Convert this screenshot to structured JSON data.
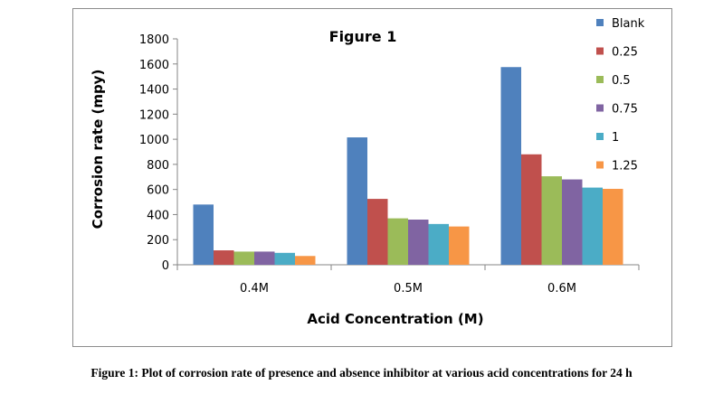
{
  "caption": "Figure 1: Plot of corrosion rate of presence and absence inhibitor at various acid concentrations for 24 h",
  "chart_data": {
    "type": "bar",
    "title": "Figure 1",
    "xlabel": "Acid Concentration (M)",
    "ylabel": "Corrosion rate (mpy)",
    "ylim": [
      0,
      1800
    ],
    "yticks": [
      0,
      200,
      400,
      600,
      800,
      1000,
      1200,
      1400,
      1600,
      1800
    ],
    "categories": [
      "0.4M",
      "0.5M",
      "0.6M"
    ],
    "grid": false,
    "legend_position": "right",
    "series": [
      {
        "name": "Blank",
        "color": "#4f81bd",
        "values": [
          480,
          1015,
          1575
        ]
      },
      {
        "name": "0.25",
        "color": "#c0504d",
        "values": [
          115,
          525,
          880
        ]
      },
      {
        "name": "0.5",
        "color": "#9bbb59",
        "values": [
          105,
          370,
          705
        ]
      },
      {
        "name": "0.75",
        "color": "#8064a2",
        "values": [
          105,
          360,
          680
        ]
      },
      {
        "name": "1",
        "color": "#4bacc6",
        "values": [
          95,
          325,
          615
        ]
      },
      {
        "name": "1.25",
        "color": "#f79646",
        "values": [
          70,
          305,
          605
        ]
      }
    ]
  }
}
